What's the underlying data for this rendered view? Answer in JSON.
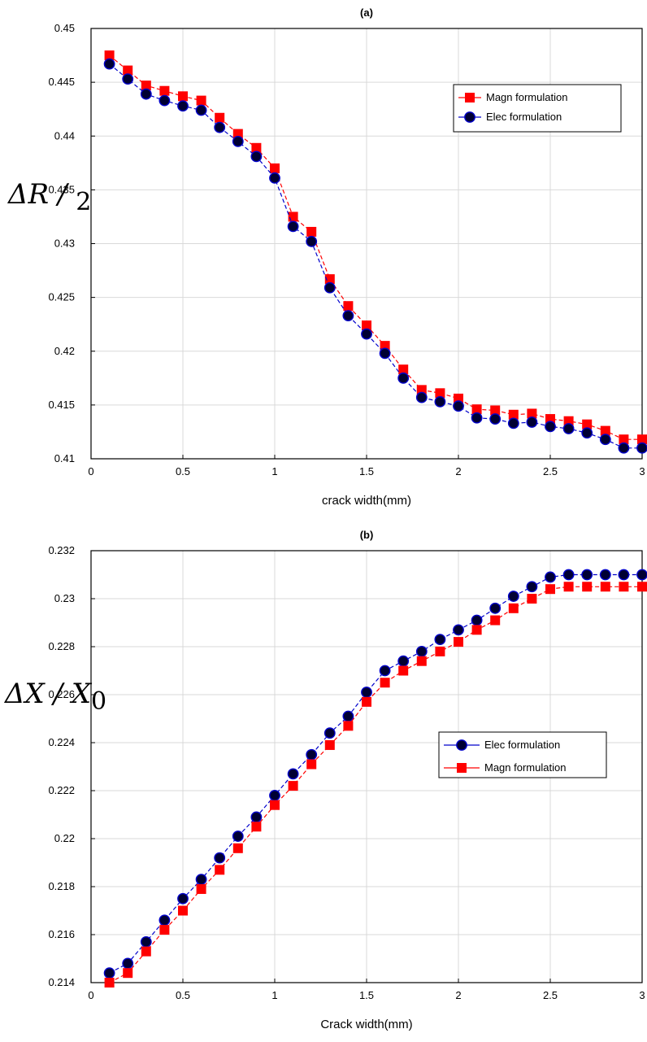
{
  "chart_data": [
    {
      "type": "line",
      "title": "(a)",
      "xlabel": "crack width(mm)",
      "ylabel_main": "ΔR / ",
      "ylabel_sub": "2",
      "xlim": [
        0,
        3
      ],
      "ylim": [
        0.41,
        0.45
      ],
      "xticks": [
        0,
        0.5,
        1,
        1.5,
        2,
        2.5,
        3
      ],
      "xtick_labels": [
        "0",
        "0.5",
        "1",
        "1.5",
        "2",
        "2.5",
        "3"
      ],
      "yticks": [
        0.41,
        0.415,
        0.42,
        0.425,
        0.43,
        0.435,
        0.44,
        0.445,
        0.45
      ],
      "ytick_labels": [
        "0.41",
        "0.415",
        "0.42",
        "0.425",
        "0.43",
        "0.435",
        "0.44",
        "0.445",
        "0.45"
      ],
      "grid": true,
      "legend_position": "top-right",
      "x": [
        0.1,
        0.2,
        0.3,
        0.4,
        0.5,
        0.6,
        0.7,
        0.8,
        0.9,
        1.0,
        1.1,
        1.2,
        1.3,
        1.4,
        1.5,
        1.6,
        1.7,
        1.8,
        1.9,
        2.0,
        2.1,
        2.2,
        2.3,
        2.4,
        2.5,
        2.6,
        2.7,
        2.8,
        2.9,
        3.0
      ],
      "series": [
        {
          "name": "Magn formulation",
          "color": "#ff0000",
          "marker": "square",
          "values": [
            0.4475,
            0.4461,
            0.4447,
            0.4442,
            0.4437,
            0.4433,
            0.4417,
            0.4402,
            0.4389,
            0.437,
            0.4325,
            0.4311,
            0.4267,
            0.4242,
            0.4224,
            0.4205,
            0.4183,
            0.4164,
            0.4161,
            0.4156,
            0.4146,
            0.4145,
            0.4141,
            0.4142,
            0.4137,
            0.4135,
            0.4132,
            0.4126,
            0.4118,
            0.4118
          ]
        },
        {
          "name": "Elec formulation",
          "color": "#0000cc",
          "fill": "#000033",
          "marker": "circle",
          "values": [
            0.4467,
            0.4453,
            0.4439,
            0.4433,
            0.4428,
            0.4424,
            0.4408,
            0.4395,
            0.4381,
            0.4361,
            0.4316,
            0.4302,
            0.4259,
            0.4233,
            0.4216,
            0.4198,
            0.4175,
            0.4157,
            0.4153,
            0.4149,
            0.4138,
            0.4137,
            0.4133,
            0.4134,
            0.413,
            0.4128,
            0.4124,
            0.4118,
            0.411,
            0.411
          ]
        }
      ]
    },
    {
      "type": "line",
      "title": "(b)",
      "xlabel": "Crack width(mm)",
      "ylabel_main": "ΔX / X",
      "ylabel_sub": "0",
      "xlim": [
        0,
        3
      ],
      "ylim": [
        0.214,
        0.232
      ],
      "xticks": [
        0,
        0.5,
        1,
        1.5,
        2,
        2.5,
        3
      ],
      "xtick_labels": [
        "0",
        "0.5",
        "1",
        "1.5",
        "2",
        "2.5",
        "3"
      ],
      "yticks": [
        0.214,
        0.216,
        0.218,
        0.22,
        0.222,
        0.224,
        0.226,
        0.228,
        0.23,
        0.232
      ],
      "ytick_labels": [
        "0.214",
        "0.216",
        "0.218",
        "0.22",
        "0.222",
        "0.224",
        "0.226",
        "0.228",
        "0.23",
        "0.232"
      ],
      "grid": true,
      "legend_position": "center-right",
      "x": [
        0.1,
        0.2,
        0.3,
        0.4,
        0.5,
        0.6,
        0.7,
        0.8,
        0.9,
        1.0,
        1.1,
        1.2,
        1.3,
        1.4,
        1.5,
        1.6,
        1.7,
        1.8,
        1.9,
        2.0,
        2.1,
        2.2,
        2.3,
        2.4,
        2.5,
        2.6,
        2.7,
        2.8,
        2.9,
        3.0
      ],
      "series": [
        {
          "name": "Elec formulation",
          "color": "#0000cc",
          "fill": "#000033",
          "marker": "circle",
          "values": [
            0.2144,
            0.2148,
            0.2157,
            0.2166,
            0.2175,
            0.2183,
            0.2192,
            0.2201,
            0.2209,
            0.2218,
            0.2227,
            0.2235,
            0.2244,
            0.2251,
            0.2261,
            0.227,
            0.2274,
            0.2278,
            0.2283,
            0.2287,
            0.2291,
            0.2296,
            0.2301,
            0.2305,
            0.2309,
            0.231,
            0.231,
            0.231,
            0.231,
            0.231
          ]
        },
        {
          "name": "Magn formulation",
          "color": "#ff0000",
          "marker": "square",
          "values": [
            0.214,
            0.2144,
            0.2153,
            0.2162,
            0.217,
            0.2179,
            0.2187,
            0.2196,
            0.2205,
            0.2214,
            0.2222,
            0.2231,
            0.2239,
            0.2247,
            0.2257,
            0.2265,
            0.227,
            0.2274,
            0.2278,
            0.2282,
            0.2287,
            0.2291,
            0.2296,
            0.23,
            0.2304,
            0.2305,
            0.2305,
            0.2305,
            0.2305,
            0.2305
          ]
        }
      ]
    }
  ]
}
